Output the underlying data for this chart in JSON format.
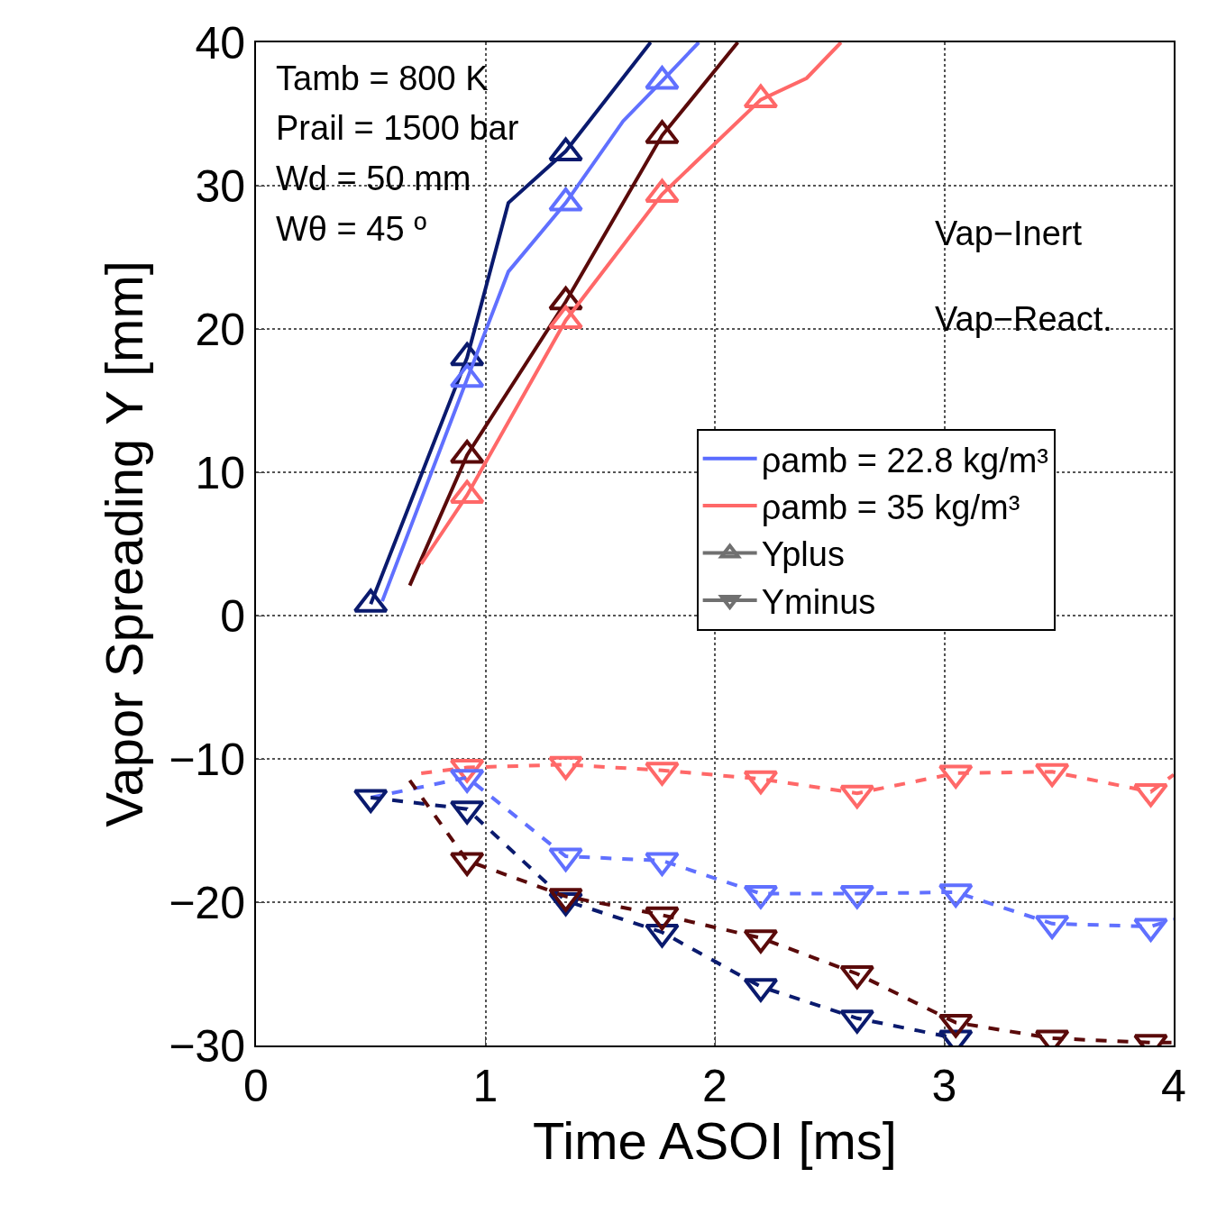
{
  "chart_data": {
    "type": "line",
    "xlabel": "Time ASOI [ms]",
    "ylabel": "Vapor Spreading Y [mm]",
    "xlim": [
      0,
      4
    ],
    "xticks": [
      0,
      1,
      2,
      3,
      4
    ],
    "ylim": [
      -30,
      40
    ],
    "yticks": [
      -30,
      -20,
      -10,
      0,
      10,
      20,
      30,
      40
    ],
    "grid": true,
    "legend": "right",
    "annotations": [
      "Tamb = 800 K",
      "Prail = 1500 bar",
      "Wd = 50 mm",
      "Wθ = 45 º",
      "Vap−Inert",
      "Vap−React."
    ],
    "series": [
      {
        "name": "ρamb = 22.8 kg/m³",
        "color": "#5a6cff",
        "line_style": "solid",
        "marker": "none"
      },
      {
        "name": "ρamb = 35 kg/m³",
        "color": "#ff6868",
        "line_style": "solid",
        "marker": "none"
      },
      {
        "name": "Yplus",
        "color": "#707070",
        "line_style": "solid",
        "marker": "triangle"
      },
      {
        "name": "Yminus",
        "color": "#707070",
        "line_style": "solid",
        "marker": "triangle-down"
      },
      {
        "color": "#0a1a6e",
        "line_style": "solid",
        "marker": "none",
        "x": [
          0.5,
          0.92,
          1.1,
          1.35,
          1.72
        ],
        "values": [
          0.8,
          18,
          28.8,
          32.4,
          40
        ]
      },
      {
        "color": "#0a1a6e",
        "type": "scatter",
        "marker": "triangle",
        "x": [
          0.5,
          0.92,
          1.35
        ],
        "values": [
          0.8,
          18,
          32.3
        ]
      },
      {
        "color": "#6070ff",
        "line_style": "solid",
        "marker": "none",
        "x": [
          0.55,
          0.92,
          1.1,
          1.35,
          1.6,
          1.77,
          1.93
        ],
        "values": [
          1,
          16.5,
          24,
          28.8,
          34.5,
          37.3,
          40
        ]
      },
      {
        "color": "#6070ff",
        "type": "scatter",
        "marker": "triangle",
        "x": [
          0.92,
          1.35,
          1.77
        ],
        "values": [
          16.5,
          28.8,
          37.3
        ]
      },
      {
        "color": "#5a0a0a",
        "line_style": "solid",
        "marker": "none",
        "x": [
          0.67,
          0.92,
          1.35,
          1.77,
          2.1
        ],
        "values": [
          2.1,
          11.2,
          21.9,
          33.5,
          40
        ]
      },
      {
        "color": "#5a0a0a",
        "type": "scatter",
        "marker": "triangle",
        "x": [
          0.92,
          1.35,
          1.77
        ],
        "values": [
          11.2,
          21.9,
          33.5
        ]
      },
      {
        "color": "#ff6868",
        "line_style": "solid",
        "marker": "none",
        "x": [
          0.72,
          0.92,
          1.35,
          1.77,
          2.2,
          2.4,
          2.55
        ],
        "values": [
          3.6,
          8.4,
          20.6,
          29.4,
          36,
          37.5,
          40
        ]
      },
      {
        "color": "#ff6868",
        "type": "scatter",
        "marker": "triangle",
        "x": [
          0.92,
          1.35,
          1.77,
          2.2
        ],
        "values": [
          8.4,
          20.6,
          29.4,
          36
        ]
      },
      {
        "color": "#ff6868",
        "line_style": "dashed",
        "marker": "none",
        "x": [
          0.72,
          0.92,
          1.35,
          1.77,
          2.2,
          2.62,
          3.05,
          3.47,
          3.9,
          4
        ],
        "values": [
          -11,
          -10.6,
          -10.4,
          -10.8,
          -11.4,
          -12.4,
          -11,
          -10.9,
          -12.3,
          -11.1
        ]
      },
      {
        "color": "#ff6868",
        "type": "scatter",
        "marker": "triangle-down",
        "x": [
          0.92,
          1.35,
          1.77,
          2.2,
          2.62,
          3.05,
          3.47,
          3.9
        ],
        "values": [
          -10.6,
          -10.4,
          -10.8,
          -11.4,
          -12.4,
          -11,
          -10.9,
          -12.3
        ]
      },
      {
        "color": "#6070ff",
        "line_style": "dashed",
        "marker": "none",
        "x": [
          0.5,
          0.92,
          1.35,
          1.77,
          2.2,
          2.62,
          3.05,
          3.47,
          3.9,
          4
        ],
        "values": [
          -12.7,
          -11.3,
          -16.8,
          -17.1,
          -19.4,
          -19.4,
          -19.3,
          -21.5,
          -21.7,
          -21.2
        ]
      },
      {
        "color": "#6070ff",
        "type": "scatter",
        "marker": "triangle-down",
        "x": [
          0.92,
          1.35,
          1.77,
          2.2,
          2.62,
          3.05,
          3.47,
          3.9
        ],
        "values": [
          -11.3,
          -16.8,
          -17.1,
          -19.4,
          -19.4,
          -19.3,
          -21.5,
          -21.7
        ]
      },
      {
        "color": "#0a1a6e",
        "line_style": "dashed",
        "marker": "none",
        "x": [
          0.5,
          0.92,
          1.35,
          1.77,
          2.2,
          2.62,
          3.05
        ],
        "values": [
          -12.7,
          -13.5,
          -19.9,
          -22.1,
          -25.9,
          -28.1,
          -29.5
        ]
      },
      {
        "color": "#0a1a6e",
        "type": "scatter",
        "marker": "triangle-down",
        "x": [
          0.5,
          0.92,
          1.35,
          1.77,
          2.2,
          2.62,
          3.05
        ],
        "values": [
          -12.7,
          -13.5,
          -19.9,
          -22.1,
          -25.9,
          -28.1,
          -29.5
        ]
      },
      {
        "color": "#5a0a0a",
        "line_style": "dashed",
        "marker": "none",
        "x": [
          0.67,
          0.92,
          1.35,
          1.77,
          2.2,
          2.62,
          3.05,
          3.47,
          3.9,
          4
        ],
        "values": [
          -11.5,
          -17.1,
          -19.6,
          -20.9,
          -22.5,
          -25,
          -28.4,
          -29.5,
          -29.8,
          -29.8
        ]
      },
      {
        "color": "#5a0a0a",
        "type": "scatter",
        "marker": "triangle-down",
        "x": [
          0.92,
          1.35,
          1.77,
          2.2,
          2.62,
          3.05,
          3.47,
          3.9
        ],
        "values": [
          -17.1,
          -19.6,
          -20.9,
          -22.5,
          -25,
          -28.4,
          -29.5,
          -29.8
        ]
      }
    ]
  }
}
